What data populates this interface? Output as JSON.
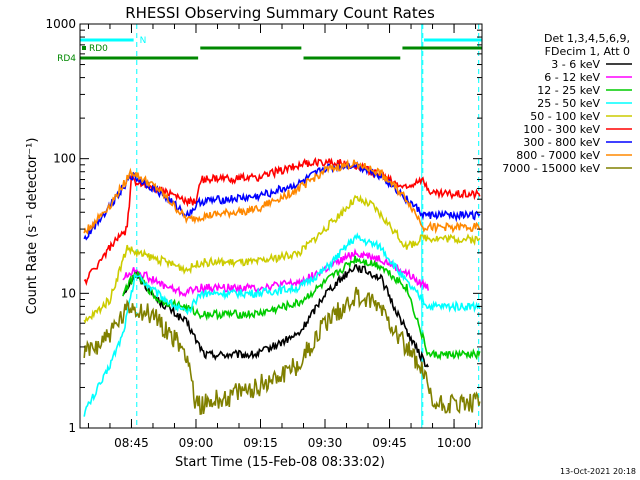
{
  "chart_data": {
    "type": "line",
    "title": "RHESSI Observing Summary Count Rates",
    "xlabel": "Start Time (15-Feb-08 08:33:02)",
    "ylabel": "Count Rate (s⁻¹ detector⁻¹)",
    "x_ticks": [
      "08:45",
      "09:00",
      "09:15",
      "09:30",
      "09:45",
      "10:00"
    ],
    "x_range": [
      "08:33:02",
      "10:06:30"
    ],
    "y_ticks": [
      "1",
      "10",
      "100",
      "1000"
    ],
    "ylim": [
      1,
      1000
    ],
    "y_scale": "log",
    "legend": {
      "placement": "right",
      "header": [
        "Det 1,3,4,5,6,9,",
        "FDecim 1, Att 0"
      ],
      "entries": [
        {
          "label": "3 - 6 keV",
          "color": "#000000"
        },
        {
          "label": "6 - 12 keV",
          "color": "#ff00ff"
        },
        {
          "label": "12 - 25 keV",
          "color": "#00cc00"
        },
        {
          "label": "25 - 50 keV",
          "color": "#00ffff"
        },
        {
          "label": "50 - 100 keV",
          "color": "#cccc00"
        },
        {
          "label": "100 - 300 keV",
          "color": "#ff0000"
        },
        {
          "label": "300 - 800 keV",
          "color": "#0000ff"
        },
        {
          "label": "800 - 7000 keV",
          "color": "#ff8800"
        },
        {
          "label": "7000 - 15000 keV",
          "color": "#808000"
        }
      ]
    },
    "flags": [
      {
        "label": "N",
        "color": "#00ffff",
        "segments": [
          [
            "08:33:02",
            "08:45:30"
          ],
          [
            "09:53:00",
            "10:06:30"
          ]
        ]
      },
      {
        "label": "RD0",
        "color": "#008800",
        "segments": [
          [
            "09:01:00",
            "09:24:30"
          ],
          [
            "09:48:00",
            "10:06:30"
          ]
        ]
      },
      {
        "label": "RD4",
        "color": "#008800",
        "segments": [
          [
            "08:33:02",
            "09:00:30"
          ],
          [
            "09:25:00",
            "09:47:30"
          ]
        ]
      }
    ],
    "markers": {
      "solid": [
        "09:52:30"
      ],
      "dashed": [
        "08:46:00",
        "09:52:30",
        "10:05:30"
      ]
    },
    "series": [
      {
        "name": "3 - 6 keV",
        "color": "#000000",
        "x": [
          "08:43",
          "08:46",
          "08:51",
          "08:58",
          "09:00",
          "09:02",
          "09:14",
          "09:24",
          "09:30",
          "09:37",
          "09:43",
          "09:46",
          "09:51",
          "09:54"
        ],
        "values": [
          10,
          14,
          9,
          6,
          4.5,
          3.5,
          3.5,
          5,
          10,
          16,
          13,
          8,
          4,
          2.8
        ]
      },
      {
        "name": "6 - 12 keV",
        "color": "#ff00ff",
        "x": [
          "08:43",
          "08:46",
          "08:51",
          "08:57",
          "09:01",
          "09:14",
          "09:24",
          "09:30",
          "09:37",
          "09:43",
          "09:49",
          "09:54"
        ],
        "values": [
          13,
          15,
          12,
          10,
          11,
          11,
          12,
          15,
          20,
          18,
          14,
          11
        ]
      },
      {
        "name": "12 - 25 keV",
        "color": "#00cc00",
        "x": [
          "08:43",
          "08:46",
          "08:51",
          "08:57",
          "09:01",
          "09:14",
          "09:24",
          "09:30",
          "09:37",
          "09:43",
          "09:49",
          "09:54",
          "10:06"
        ],
        "values": [
          10,
          14,
          9,
          8,
          7,
          7,
          8.5,
          12,
          18,
          16,
          11,
          3.5,
          3.5
        ]
      },
      {
        "name": "25 - 50 keV",
        "color": "#00ffff",
        "x": [
          "08:34",
          "08:39",
          "08:43",
          "08:46",
          "08:51",
          "08:58",
          "09:01",
          "09:14",
          "09:24",
          "09:30",
          "09:37",
          "09:43",
          "09:49",
          "09:54",
          "10:06"
        ],
        "values": [
          1.3,
          2.5,
          5,
          14,
          10,
          7,
          10,
          10,
          11,
          15,
          26,
          22,
          12,
          8,
          8
        ]
      },
      {
        "name": "50 - 100 keV",
        "color": "#cccc00",
        "x": [
          "08:34",
          "08:40",
          "08:44",
          "08:46",
          "08:51",
          "08:58",
          "09:01",
          "09:14",
          "09:24",
          "09:30",
          "09:37",
          "09:41",
          "09:45",
          "09:49",
          "09:53",
          "10:06"
        ],
        "values": [
          6,
          9,
          22,
          20,
          18,
          15,
          17,
          17,
          20,
          30,
          50,
          45,
          32,
          22,
          26,
          25
        ]
      },
      {
        "name": "100 - 300 keV",
        "color": "#ff0000",
        "x": [
          "08:34",
          "08:40",
          "08:44",
          "08:45",
          "08:51",
          "08:58",
          "09:00",
          "09:01",
          "09:14",
          "09:24",
          "09:30",
          "09:37",
          "09:43",
          "09:49",
          "09:52",
          "09:55",
          "10:06"
        ],
        "values": [
          12,
          22,
          30,
          70,
          60,
          48,
          48,
          70,
          72,
          90,
          95,
          90,
          75,
          60,
          72,
          55,
          55
        ]
      },
      {
        "name": "300 - 800 keV",
        "color": "#0000ff",
        "x": [
          "08:34",
          "08:40",
          "08:45",
          "08:51",
          "08:58",
          "09:01",
          "09:14",
          "09:24",
          "09:30",
          "09:37",
          "09:43",
          "09:49",
          "09:53",
          "10:06"
        ],
        "values": [
          25,
          45,
          75,
          58,
          38,
          48,
          52,
          65,
          85,
          90,
          75,
          50,
          38,
          38
        ]
      },
      {
        "name": "800 - 7000 keV",
        "color": "#ff8800",
        "x": [
          "08:34",
          "08:40",
          "08:45",
          "08:51",
          "08:58",
          "09:01",
          "09:14",
          "09:24",
          "09:30",
          "09:37",
          "09:43",
          "09:49",
          "09:53",
          "10:06"
        ],
        "values": [
          28,
          45,
          80,
          60,
          35,
          37,
          42,
          60,
          82,
          92,
          78,
          50,
          31,
          31
        ]
      },
      {
        "name": "7000 - 15000 keV",
        "color": "#808000",
        "x": [
          "08:34",
          "08:40",
          "08:45",
          "08:51",
          "08:58",
          "09:00",
          "09:02",
          "09:14",
          "09:24",
          "09:30",
          "09:37",
          "09:43",
          "09:49",
          "09:53",
          "09:55",
          "10:06"
        ],
        "values": [
          3.5,
          5,
          8,
          6.5,
          3.5,
          1.5,
          1.5,
          2,
          3,
          6,
          9.5,
          8,
          4,
          2.5,
          1.5,
          1.5
        ]
      }
    ],
    "footer_date": "13-Oct-2021 20:18"
  }
}
